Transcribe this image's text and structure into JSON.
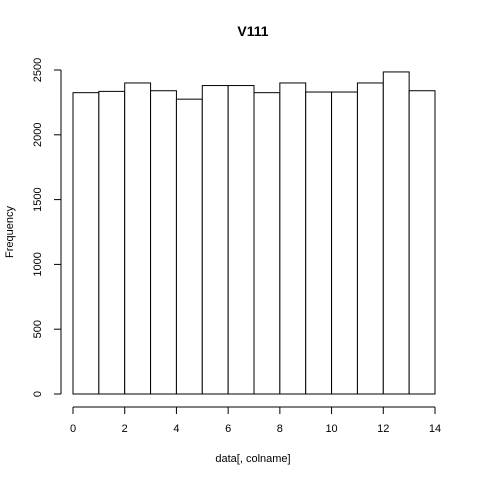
{
  "chart_data": {
    "type": "bar",
    "title": "V111",
    "xlabel": "data[, colname]",
    "ylabel": "Frequency",
    "bins": [
      {
        "x0": 0,
        "x1": 1,
        "count": 2325
      },
      {
        "x0": 1,
        "x1": 2,
        "count": 2335
      },
      {
        "x0": 2,
        "x1": 3,
        "count": 2400
      },
      {
        "x0": 3,
        "x1": 4,
        "count": 2340
      },
      {
        "x0": 4,
        "x1": 5,
        "count": 2275
      },
      {
        "x0": 5,
        "x1": 6,
        "count": 2380
      },
      {
        "x0": 6,
        "x1": 7,
        "count": 2380
      },
      {
        "x0": 7,
        "x1": 8,
        "count": 2325
      },
      {
        "x0": 8,
        "x1": 9,
        "count": 2400
      },
      {
        "x0": 9,
        "x1": 10,
        "count": 2330
      },
      {
        "x0": 10,
        "x1": 11,
        "count": 2330
      },
      {
        "x0": 11,
        "x1": 12,
        "count": 2400
      },
      {
        "x0": 12,
        "x1": 13,
        "count": 2485
      },
      {
        "x0": 13,
        "x1": 14,
        "count": 2340
      }
    ],
    "xlim": [
      0,
      14
    ],
    "ylim": [
      0,
      2500
    ],
    "xticks": [
      "0",
      "2",
      "4",
      "6",
      "8",
      "10",
      "12",
      "14"
    ],
    "yticks": [
      "0",
      "500",
      "1000",
      "1500",
      "2000",
      "2500"
    ],
    "grid": false,
    "legend": "none"
  }
}
